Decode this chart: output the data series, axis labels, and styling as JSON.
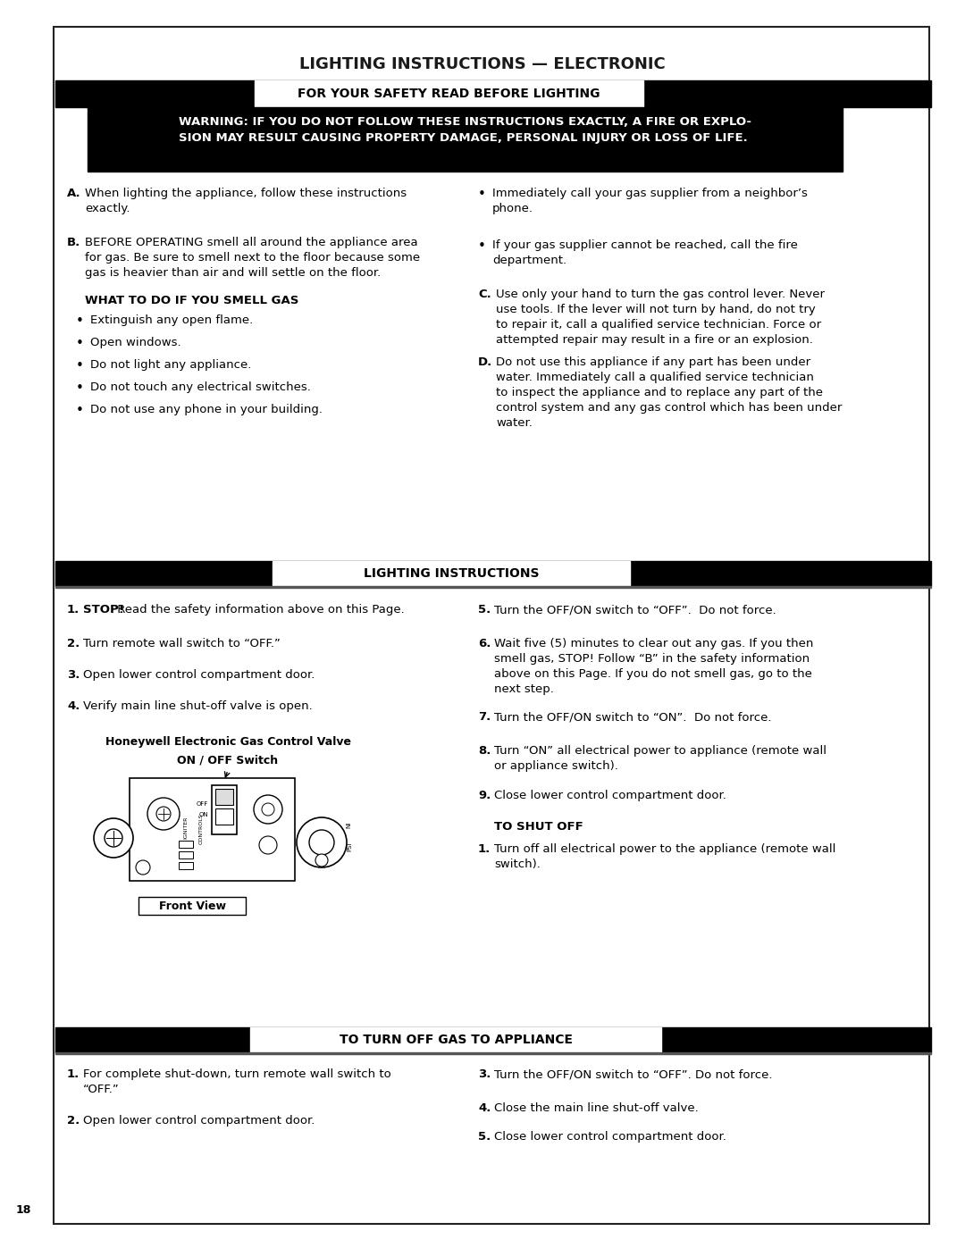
{
  "title": "LIGHTING INSTRUCTIONS — ELECTRONIC",
  "safety_header": "FOR YOUR SAFETY READ BEFORE LIGHTING",
  "warning_text": "WARNING: IF YOU DO NOT FOLLOW THESE INSTRUCTIONS EXACTLY, A FIRE OR EXPLO-\nSION MAY RESULT CAUSING PROPERTY DAMAGE, PERSONAL INJURY OR LOSS OF LIFE.",
  "smell_gas_header": "WHAT TO DO IF YOU SMELL GAS",
  "smell_gas_bullets": [
    "Extinguish any open flame.",
    "Open windows.",
    "Do not light any appliance.",
    "Do not touch any electrical switches.",
    "Do not use any phone in your building."
  ],
  "right_col_bullet1": "Immediately call your gas supplier from a neighbor’s\nphone.",
  "right_col_bullet2": "If your gas supplier cannot be reached, call the fire\ndepartment.",
  "lighting_header": "LIGHTING INSTRUCTIONS",
  "valve_label": "Honeywell Electronic Gas Control Valve",
  "switch_label": "ON / OFF Switch",
  "front_view_label": "Front View",
  "to_shut_off_header": "TO SHUT OFF",
  "turn_off_gas_header": "TO TURN OFF GAS TO APPLIANCE",
  "page_number": "18"
}
